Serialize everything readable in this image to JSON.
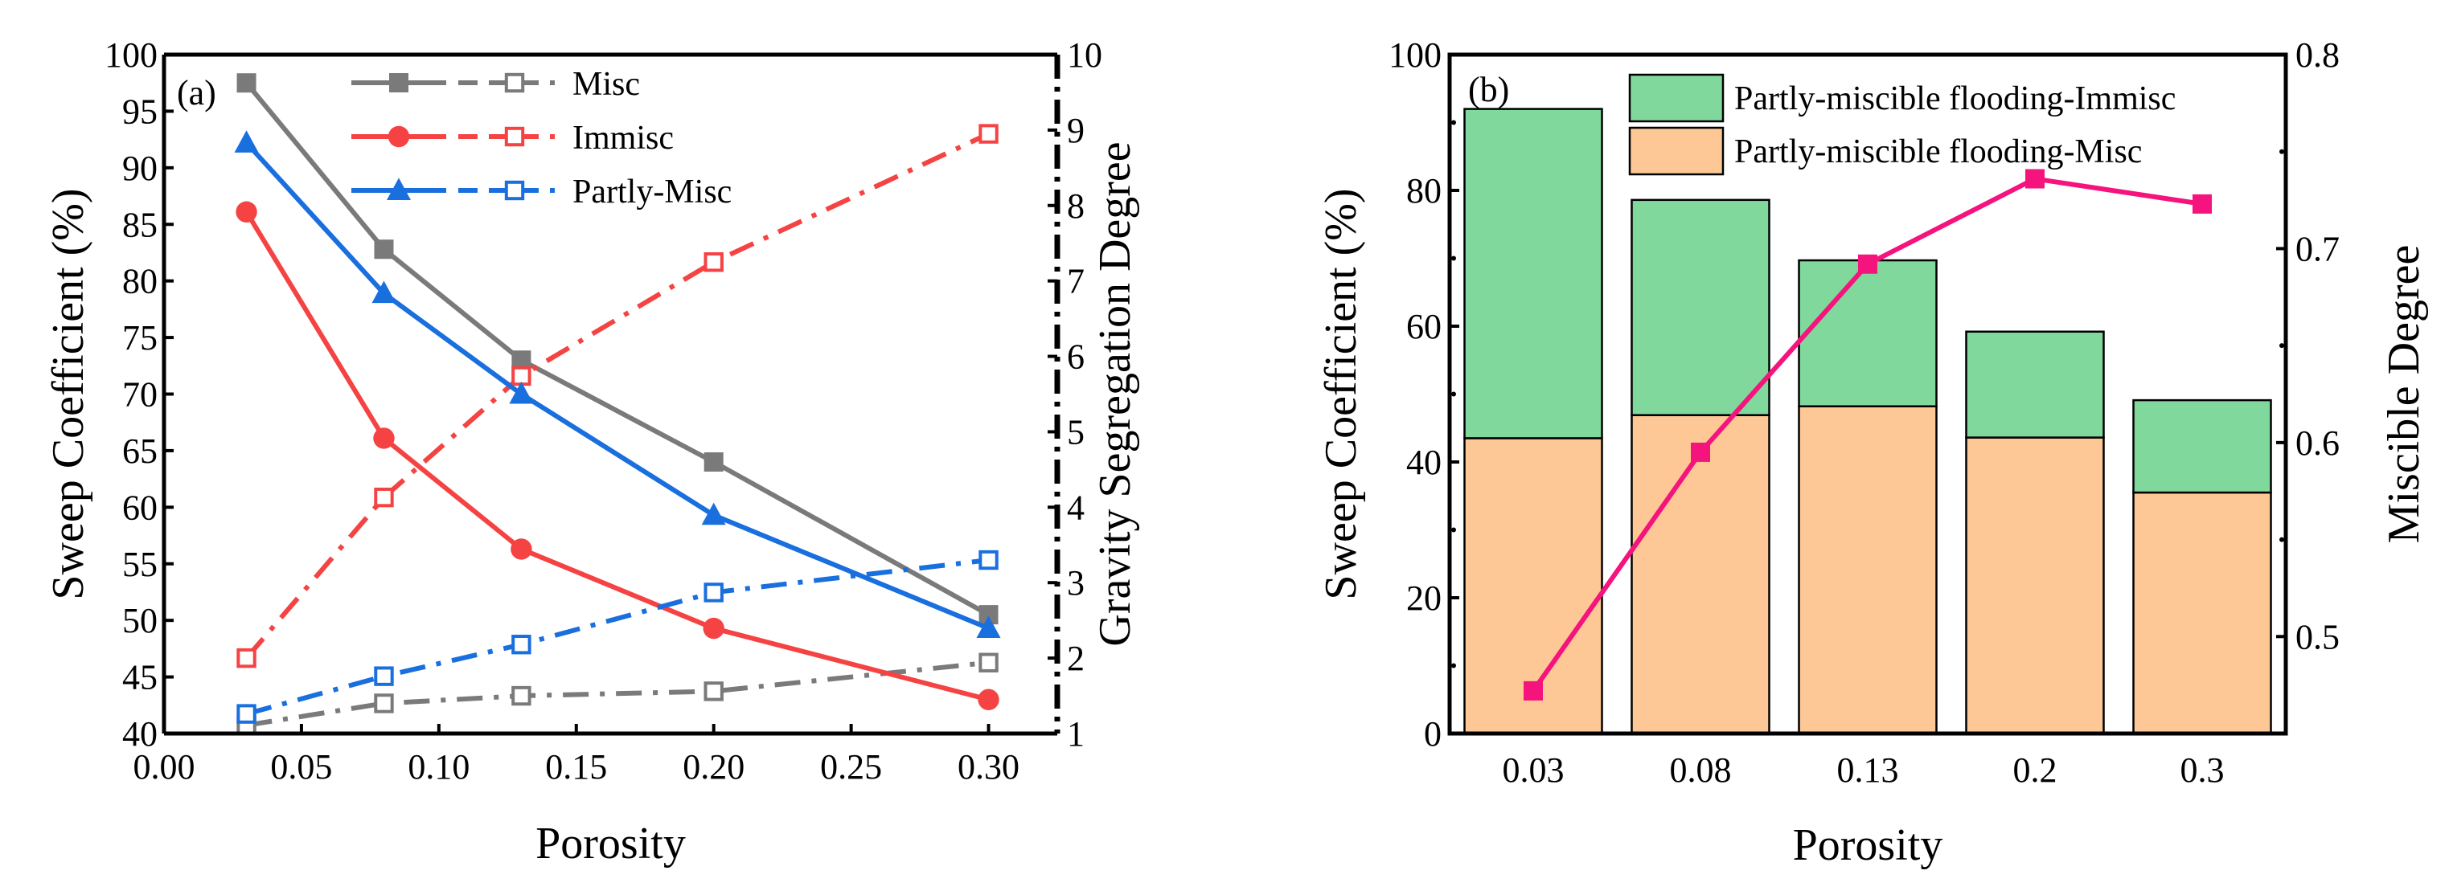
{
  "chart_data": [
    {
      "type": "line",
      "panel_label": "(a)",
      "xlabel": "Porosity",
      "ylabel": "Sweep Coefficient (%)",
      "y2label": "Gravity Segregation Degree",
      "xlim": [
        0,
        0.325
      ],
      "ylim": [
        40,
        100
      ],
      "y2lim": [
        1,
        10
      ],
      "xticks": [
        "0.00",
        "0.05",
        "0.10",
        "0.15",
        "0.20",
        "0.25",
        "0.30"
      ],
      "yticks": [
        "40",
        "45",
        "50",
        "55",
        "60",
        "65",
        "70",
        "75",
        "80",
        "85",
        "90",
        "95",
        "100"
      ],
      "y2ticks": [
        "1",
        "2",
        "3",
        "4",
        "5",
        "6",
        "7",
        "8",
        "9",
        "10"
      ],
      "legend_position": "top",
      "x": [
        0.03,
        0.08,
        0.13,
        0.2,
        0.3
      ],
      "series": [
        {
          "name": "Misc",
          "color": "#7a7a7a",
          "marker": "square",
          "sweep": [
            97.5,
            82.8,
            73.0,
            64.0,
            50.5
          ],
          "segregation": [
            1.11,
            1.4,
            1.5,
            1.56,
            1.94
          ]
        },
        {
          "name": "Immisc",
          "color": "#f54343",
          "marker": "circle",
          "sweep": [
            86.1,
            66.1,
            56.3,
            49.3,
            43.0
          ],
          "segregation": [
            2.0,
            4.13,
            5.74,
            7.25,
            8.95
          ]
        },
        {
          "name": "Partly-Misc",
          "color": "#1a6fde",
          "marker": "triangle",
          "sweep": [
            92.2,
            78.9,
            70.0,
            59.3,
            49.3
          ],
          "segregation": [
            1.26,
            1.76,
            2.18,
            2.87,
            3.3
          ]
        }
      ]
    },
    {
      "type": "bar",
      "stacked": true,
      "panel_label": "(b)",
      "xlabel": "Porosity",
      "ylabel": "Sweep Coefficient (%)",
      "y2label": "Miscible Degree",
      "categories": [
        "0.03",
        "0.08",
        "0.13",
        "0.2",
        "0.3"
      ],
      "ylim": [
        0,
        100
      ],
      "y2lim": [
        0.45,
        0.8
      ],
      "yticks": [
        "0",
        "20",
        "40",
        "60",
        "80",
        "100"
      ],
      "y2ticks": [
        "0.5",
        "0.6",
        "0.7",
        "0.8"
      ],
      "legend_position": "top-right",
      "series": [
        {
          "name": "Partly-miscible flooding-Misc",
          "color": "#fdc895",
          "values": [
            43.5,
            46.9,
            48.2,
            43.6,
            35.5
          ]
        },
        {
          "name": "Partly-miscible flooding-Immisc",
          "color": "#80d89c",
          "values": [
            48.5,
            31.7,
            21.5,
            15.6,
            13.6
          ]
        }
      ],
      "line": {
        "color": "#f5137d",
        "axis": "right",
        "values": [
          0.472,
          0.595,
          0.692,
          0.736,
          0.723
        ]
      }
    }
  ]
}
